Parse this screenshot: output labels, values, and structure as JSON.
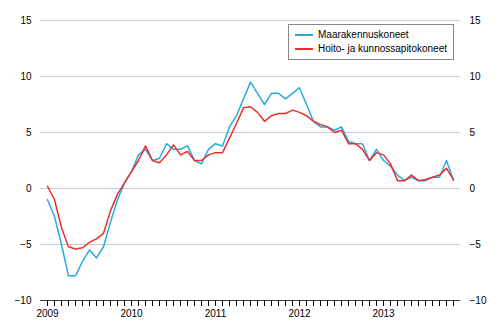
{
  "chart_data": {
    "type": "line",
    "categories": [
      "2009",
      null,
      null,
      null,
      null,
      null,
      null,
      null,
      null,
      null,
      null,
      null,
      "2010",
      null,
      null,
      null,
      null,
      null,
      null,
      null,
      null,
      null,
      null,
      null,
      "2011",
      null,
      null,
      null,
      null,
      null,
      null,
      null,
      null,
      null,
      null,
      null,
      "2012",
      null,
      null,
      null,
      null,
      null,
      null,
      null,
      null,
      null,
      null,
      null,
      "2013",
      null,
      null,
      null,
      null,
      null,
      null,
      null,
      null,
      null,
      null
    ],
    "series": [
      {
        "name": "Maarakennuskoneet",
        "color": "#29ABE2",
        "values": [
          -1.0,
          -2.5,
          -5.0,
          -7.8,
          -7.8,
          -6.5,
          -5.5,
          -6.2,
          -5.2,
          -3.0,
          -1.0,
          0.5,
          1.5,
          3.0,
          3.5,
          2.5,
          2.7,
          4.0,
          3.5,
          3.5,
          3.8,
          2.5,
          2.2,
          3.5,
          4.0,
          3.8,
          5.5,
          6.5,
          8.0,
          9.5,
          8.5,
          7.5,
          8.5,
          8.5,
          8.0,
          8.5,
          9.0,
          7.5,
          6.0,
          5.5,
          5.5,
          5.2,
          5.5,
          4.2,
          4.0,
          4.0,
          2.5,
          3.5,
          2.5,
          2.0,
          1.2,
          0.7,
          1.0,
          0.7,
          0.7,
          1.0,
          1.0,
          2.5,
          0.7
        ]
      },
      {
        "name": "Hoito- ja kunnossapitokoneet",
        "color": "#E8312A",
        "values": [
          0.2,
          -1.0,
          -3.5,
          -5.2,
          -5.4,
          -5.3,
          -4.8,
          -4.5,
          -4.0,
          -2.0,
          -0.5,
          0.5,
          1.5,
          2.5,
          3.8,
          2.5,
          2.3,
          3.0,
          3.9,
          3.0,
          3.3,
          2.5,
          2.5,
          3.0,
          3.2,
          3.2,
          4.5,
          5.8,
          7.2,
          7.3,
          6.8,
          6.0,
          6.5,
          6.7,
          6.7,
          7.0,
          6.8,
          6.5,
          6.0,
          5.7,
          5.5,
          5.0,
          5.2,
          4.0,
          4.0,
          3.5,
          2.5,
          3.2,
          3.0,
          2.2,
          0.7,
          0.7,
          1.2,
          0.7,
          0.8,
          1.0,
          1.2,
          1.8,
          0.8
        ]
      }
    ],
    "ylim": [
      -10,
      15
    ],
    "yticks": [
      -10,
      -5,
      0,
      5,
      10,
      15
    ],
    "grid": true,
    "legend": "upper right"
  }
}
